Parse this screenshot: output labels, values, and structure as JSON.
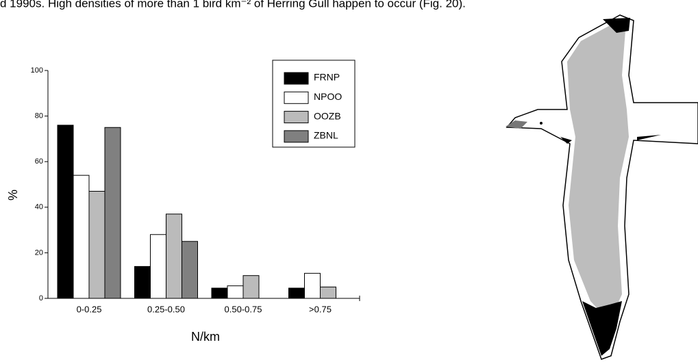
{
  "text_line": "d 1990s. High densities of more than 1 bird km⁻² of Herring Gull happen to occur (Fig. 20).",
  "chart_data": {
    "type": "bar",
    "categories": [
      "0-0.25",
      "0.25-0.50",
      "0.50-0.75",
      ">0.75"
    ],
    "series": [
      {
        "name": "FRNP",
        "color": "#000000",
        "values": [
          76,
          14,
          4.5,
          4.5
        ]
      },
      {
        "name": "NPOO",
        "color": "#ffffff",
        "values": [
          54,
          28,
          5.5,
          11
        ]
      },
      {
        "name": "OOZB",
        "color": "#bbbbbb",
        "values": [
          47,
          37,
          10,
          5
        ]
      },
      {
        "name": "ZBNL",
        "color": "#808080",
        "values": [
          75,
          25,
          null,
          null
        ]
      }
    ],
    "x_label": "N/km",
    "y_label": "%",
    "ylim": [
      0,
      100
    ],
    "yticks": [
      0,
      20,
      40,
      60,
      80,
      100
    ],
    "legend": "top-right"
  }
}
